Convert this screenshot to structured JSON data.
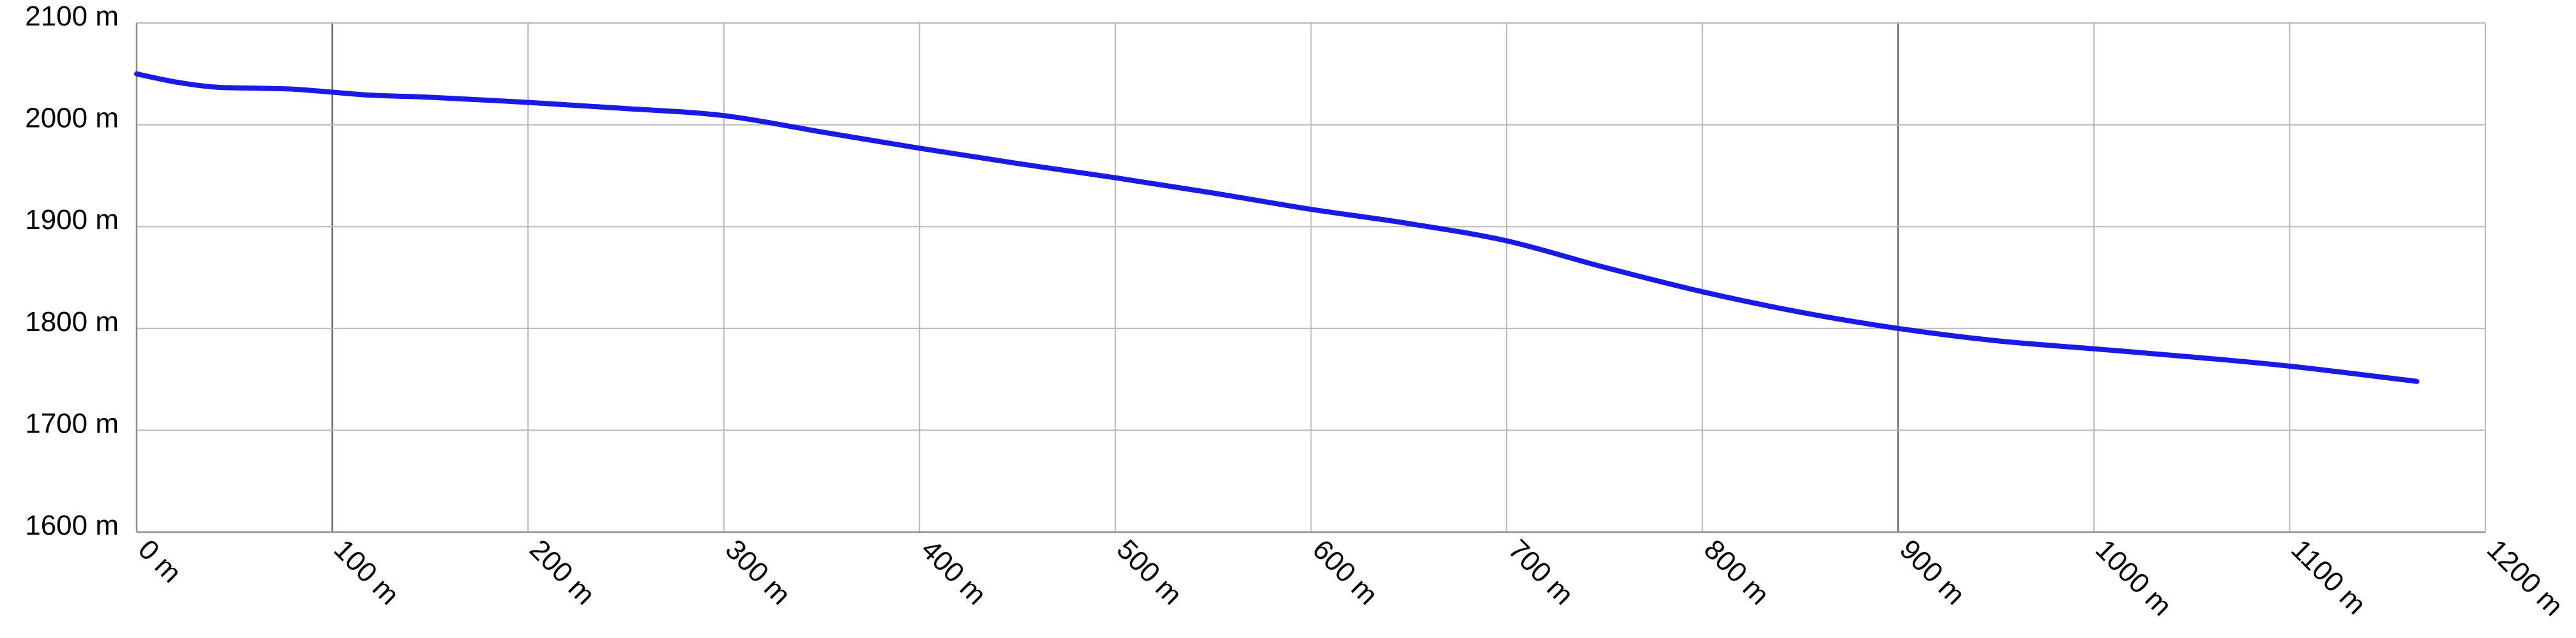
{
  "chart_data": {
    "type": "line",
    "title": "",
    "xlabel": "",
    "ylabel": "",
    "xlim": [
      0,
      1200
    ],
    "ylim": [
      1600,
      2100
    ],
    "x_ticks": [
      0,
      100,
      200,
      300,
      400,
      500,
      600,
      700,
      800,
      900,
      1000,
      1100,
      1200
    ],
    "y_ticks": [
      1600,
      1700,
      1800,
      1900,
      2000,
      2100
    ],
    "x_tick_labels": [
      "0 m",
      "100 m",
      "200 m",
      "300 m",
      "400 m",
      "500 m",
      "600 m",
      "700 m",
      "800 m",
      "900 m",
      "1000 m",
      "1100 m",
      "1200 m"
    ],
    "y_tick_labels": [
      "1600 m",
      "1700 m",
      "1800 m",
      "1900 m",
      "2000 m",
      "2100 m"
    ],
    "grid": true,
    "series": [
      {
        "color": "#1a1ae6",
        "x": [
          0,
          20,
          40,
          60,
          80,
          100,
          120,
          150,
          200,
          250,
          300,
          350,
          400,
          450,
          500,
          550,
          600,
          650,
          700,
          750,
          800,
          850,
          900,
          950,
          1000,
          1050,
          1100,
          1165
        ],
        "y": [
          2050,
          2042,
          2037,
          2036,
          2035,
          2032,
          2029,
          2027,
          2022,
          2016,
          2009,
          1993,
          1977,
          1962,
          1948,
          1933,
          1917,
          1903,
          1886,
          1860,
          1836,
          1816,
          1800,
          1788,
          1780,
          1772,
          1763,
          1748
        ]
      }
    ]
  }
}
